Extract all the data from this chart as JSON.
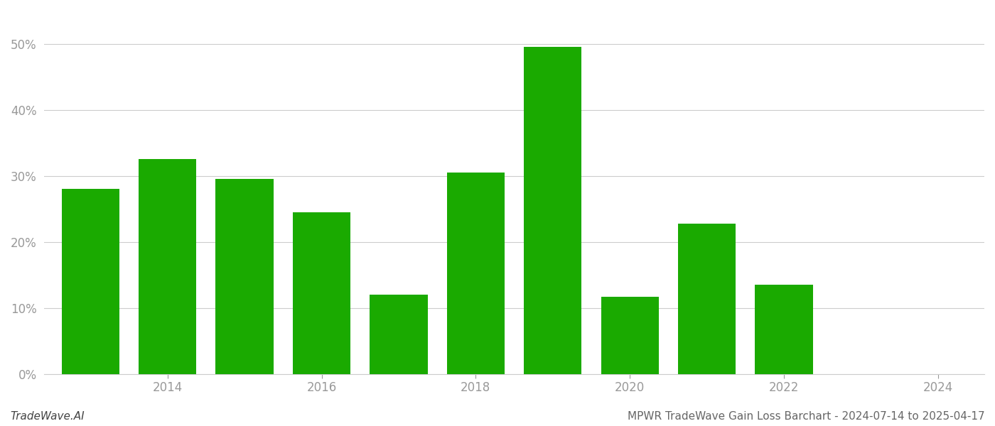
{
  "years": [
    2013,
    2014,
    2015,
    2016,
    2017,
    2018,
    2019,
    2020,
    2021,
    2022,
    2023
  ],
  "values": [
    0.28,
    0.325,
    0.295,
    0.245,
    0.12,
    0.305,
    0.495,
    0.117,
    0.228,
    0.135,
    0.0
  ],
  "bar_color": "#1aaa00",
  "background_color": "#ffffff",
  "grid_color": "#cccccc",
  "tick_label_color": "#999999",
  "footer_left": "TradeWave.AI",
  "footer_right": "MPWR TradeWave Gain Loss Barchart - 2024-07-14 to 2025-04-17",
  "ylim": [
    0,
    0.55
  ],
  "yticks": [
    0.0,
    0.1,
    0.2,
    0.3,
    0.4,
    0.5
  ],
  "xlim_left": 2012.4,
  "xlim_right": 2024.6,
  "xtick_positions": [
    2014,
    2016,
    2018,
    2020,
    2022,
    2024
  ],
  "bar_width": 0.75,
  "figsize": [
    14.0,
    6.0
  ],
  "dpi": 100,
  "tick_fontsize": 12,
  "footer_fontsize": 11
}
